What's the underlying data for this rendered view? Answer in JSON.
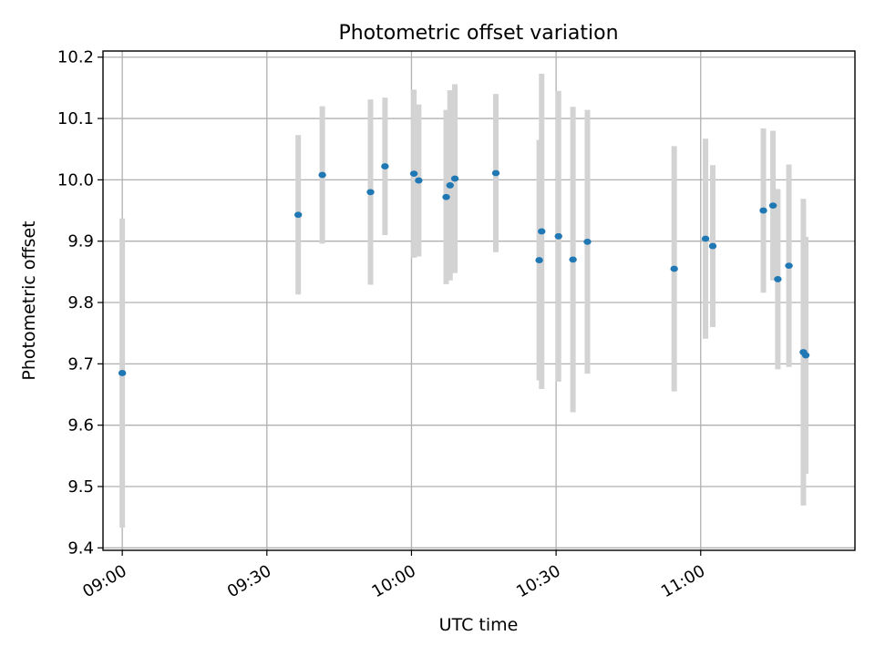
{
  "chart_data": {
    "type": "scatter",
    "title": "Photometric offset variation",
    "xlabel": "UTC time",
    "ylabel": "Photometric offset",
    "x_ticks": [
      "09:00",
      "09:30",
      "10:00",
      "10:30",
      "11:00"
    ],
    "y_ticks": [
      "9.4",
      "9.5",
      "9.6",
      "9.7",
      "9.8",
      "9.9",
      "10.0",
      "10.1",
      "10.2"
    ],
    "xlim": [
      "08:56",
      "11:32"
    ],
    "ylim": [
      9.396,
      10.21
    ],
    "grid": true,
    "legend": false,
    "colors": {
      "points": "#1f77b4",
      "errorbars": "#d3d3d3",
      "grid": "#b0b0b0"
    },
    "points": [
      {
        "x": "09:00",
        "y": 9.685,
        "yerr": 0.252
      },
      {
        "x": "09:36.5",
        "y": 9.943,
        "yerr": 0.13
      },
      {
        "x": "09:41.5",
        "y": 10.008,
        "yerr": 0.112
      },
      {
        "x": "09:51.5",
        "y": 9.98,
        "yerr": 0.151
      },
      {
        "x": "09:54.5",
        "y": 10.022,
        "yerr": 0.112
      },
      {
        "x": "10:00.5",
        "y": 10.01,
        "yerr": 0.137
      },
      {
        "x": "10:01.5",
        "y": 9.999,
        "yerr": 0.124
      },
      {
        "x": "10:07.2",
        "y": 9.972,
        "yerr": 0.142
      },
      {
        "x": "10:08",
        "y": 9.991,
        "yerr": 0.155
      },
      {
        "x": "10:09",
        "y": 10.002,
        "yerr": 0.154
      },
      {
        "x": "10:17.5",
        "y": 10.011,
        "yerr": 0.129
      },
      {
        "x": "10:26.5",
        "y": 9.869,
        "yerr": 0.196
      },
      {
        "x": "10:27",
        "y": 9.916,
        "yerr": 0.257
      },
      {
        "x": "10:30.5",
        "y": 9.908,
        "yerr": 0.237
      },
      {
        "x": "10:33.5",
        "y": 9.87,
        "yerr": 0.249
      },
      {
        "x": "10:36.5",
        "y": 9.899,
        "yerr": 0.215
      },
      {
        "x": "10:54.5",
        "y": 9.855,
        "yerr": 0.2
      },
      {
        "x": "11:01",
        "y": 9.904,
        "yerr": 0.163
      },
      {
        "x": "11:02.5",
        "y": 9.892,
        "yerr": 0.132
      },
      {
        "x": "11:13",
        "y": 9.95,
        "yerr": 0.134
      },
      {
        "x": "11:15",
        "y": 9.958,
        "yerr": 0.122
      },
      {
        "x": "11:16",
        "y": 9.838,
        "yerr": 0.147
      },
      {
        "x": "11:18.3",
        "y": 9.86,
        "yerr": 0.165
      },
      {
        "x": "11:21.3",
        "y": 9.719,
        "yerr": 0.25
      },
      {
        "x": "11:21.8",
        "y": 9.714,
        "yerr": 0.193
      }
    ]
  }
}
